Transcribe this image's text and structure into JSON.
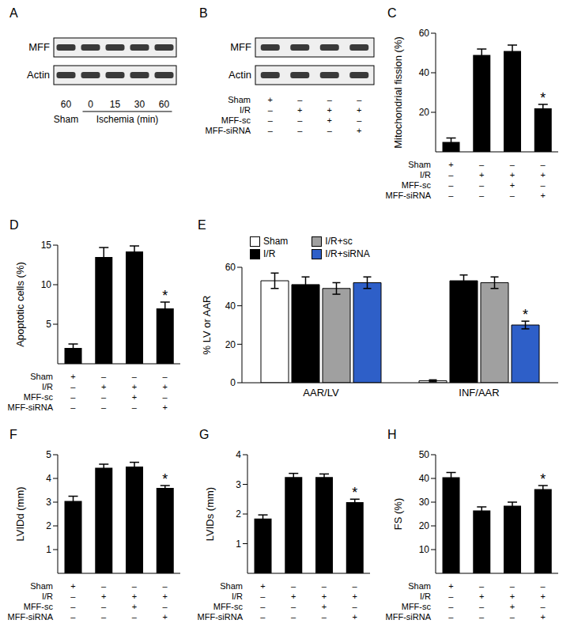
{
  "chart_data": [
    {
      "panel": "C",
      "type": "bar",
      "ylabel": "Mitochondrial fission (%)",
      "categories": [
        null,
        null,
        null,
        null
      ],
      "values": [
        5,
        49,
        51,
        22
      ],
      "errors": [
        2,
        3,
        3,
        2
      ],
      "color": "#000000",
      "ylim": [
        0,
        60
      ],
      "yticks": [
        0,
        20,
        40,
        60
      ],
      "annotations": [
        {
          "index": 3,
          "text": "*"
        }
      ],
      "conditions": [
        {
          "name": "Sham",
          "marks": [
            "+",
            "–",
            "–",
            "–"
          ]
        },
        {
          "name": "I/R",
          "marks": [
            "–",
            "+",
            "+",
            "+"
          ]
        },
        {
          "name": "MFF-sc",
          "marks": [
            "–",
            "–",
            "+",
            "–"
          ]
        },
        {
          "name": "MFF-siRNA",
          "marks": [
            "–",
            "–",
            "–",
            "+"
          ]
        }
      ]
    },
    {
      "panel": "D",
      "type": "bar",
      "ylabel": "Apoptotic cells (%)",
      "categories": [
        null,
        null,
        null,
        null
      ],
      "values": [
        2,
        13.5,
        14.2,
        7
      ],
      "errors": [
        0.5,
        1.2,
        0.7,
        0.8
      ],
      "color": "#000000",
      "ylim": [
        0,
        15
      ],
      "yticks": [
        0,
        5,
        10,
        15
      ],
      "annotations": [
        {
          "index": 3,
          "text": "*"
        }
      ],
      "conditions": [
        {
          "name": "Sham",
          "marks": [
            "+",
            "–",
            "–",
            "–"
          ]
        },
        {
          "name": "I/R",
          "marks": [
            "–",
            "+",
            "+",
            "+"
          ]
        },
        {
          "name": "MFF-sc",
          "marks": [
            "–",
            "–",
            "+",
            "–"
          ]
        },
        {
          "name": "MFF-siRNA",
          "marks": [
            "–",
            "–",
            "–",
            "+"
          ]
        }
      ]
    },
    {
      "panel": "E",
      "type": "bar",
      "ylabel": "% LV or AAR",
      "categories": [
        "AAR/LV",
        "INF/AAR"
      ],
      "ylim": [
        0,
        60
      ],
      "yticks": [
        0,
        20,
        40,
        60
      ],
      "legend": "top",
      "series": [
        {
          "name": "Sham",
          "color": "#ffffff",
          "values": [
            53,
            1
          ],
          "errors": [
            4,
            0.5
          ]
        },
        {
          "name": "I/R",
          "color": "#000000",
          "values": [
            51,
            53
          ],
          "errors": [
            4,
            3
          ]
        },
        {
          "name": "I/R+sc",
          "color": "#a0a0a0",
          "values": [
            49,
            52
          ],
          "errors": [
            3,
            3
          ]
        },
        {
          "name": "I/R+siRNA",
          "color": "#2e5fc8",
          "values": [
            52,
            30
          ],
          "errors": [
            3,
            2
          ]
        }
      ],
      "annotations": [
        {
          "series": "I/R+siRNA",
          "index": 1,
          "text": "*"
        }
      ]
    },
    {
      "panel": "F",
      "type": "bar",
      "ylabel": "LVIDd (mm)",
      "categories": [
        null,
        null,
        null,
        null
      ],
      "values": [
        3.05,
        4.45,
        4.5,
        3.6
      ],
      "errors": [
        0.2,
        0.15,
        0.18,
        0.1
      ],
      "color": "#000000",
      "ylim": [
        0,
        5
      ],
      "yticks": [
        0,
        1,
        2,
        3,
        4,
        5
      ],
      "annotations": [
        {
          "index": 3,
          "text": "*"
        }
      ],
      "conditions": [
        {
          "name": "Sham",
          "marks": [
            "+",
            "–",
            "–",
            "–"
          ]
        },
        {
          "name": "I/R",
          "marks": [
            "–",
            "+",
            "+",
            "+"
          ]
        },
        {
          "name": "MFF-sc",
          "marks": [
            "–",
            "–",
            "+",
            "–"
          ]
        },
        {
          "name": "MFF-siRNA",
          "marks": [
            "–",
            "–",
            "–",
            "+"
          ]
        }
      ]
    },
    {
      "panel": "G",
      "type": "bar",
      "ylabel": "LVIDs (mm)",
      "categories": [
        null,
        null,
        null,
        null
      ],
      "values": [
        1.85,
        3.25,
        3.25,
        2.4
      ],
      "errors": [
        0.12,
        0.12,
        0.1,
        0.1
      ],
      "color": "#000000",
      "ylim": [
        0,
        4
      ],
      "yticks": [
        0,
        1,
        2,
        3,
        4
      ],
      "annotations": [
        {
          "index": 3,
          "text": "*"
        }
      ],
      "conditions": [
        {
          "name": "Sham",
          "marks": [
            "+",
            "–",
            "–",
            "–"
          ]
        },
        {
          "name": "I/R",
          "marks": [
            "–",
            "+",
            "+",
            "+"
          ]
        },
        {
          "name": "MFF-sc",
          "marks": [
            "–",
            "–",
            "+",
            "–"
          ]
        },
        {
          "name": "MFF-siRNA",
          "marks": [
            "–",
            "–",
            "–",
            "+"
          ]
        }
      ]
    },
    {
      "panel": "H",
      "type": "bar",
      "ylabel": "FS (%)",
      "categories": [
        null,
        null,
        null,
        null
      ],
      "values": [
        40.5,
        26.5,
        28.5,
        35.5
      ],
      "errors": [
        2,
        1.5,
        1.5,
        1.5
      ],
      "color": "#000000",
      "ylim": [
        0,
        50
      ],
      "yticks": [
        0,
        10,
        20,
        30,
        40,
        50
      ],
      "annotations": [
        {
          "index": 3,
          "text": "*"
        }
      ],
      "conditions": [
        {
          "name": "Sham",
          "marks": [
            "+",
            "–",
            "–",
            "–"
          ]
        },
        {
          "name": "I/R",
          "marks": [
            "–",
            "+",
            "+",
            "+"
          ]
        },
        {
          "name": "MFF-sc",
          "marks": [
            "–",
            "–",
            "+",
            "–"
          ]
        },
        {
          "name": "MFF-siRNA",
          "marks": [
            "–",
            "–",
            "–",
            "+"
          ]
        }
      ]
    }
  ],
  "blots": [
    {
      "panel": "A",
      "bands": [
        "MFF",
        "Actin"
      ],
      "lanes": [
        60,
        0,
        15,
        30,
        60
      ],
      "groups": [
        {
          "text": "Sham",
          "from": 0,
          "to": 0
        },
        {
          "text": "Ischemia (min)",
          "from": 1,
          "to": 4
        }
      ]
    },
    {
      "panel": "B",
      "bands": [
        "MFF",
        "Actin"
      ],
      "conditions": [
        {
          "name": "Sham",
          "marks": [
            "+",
            "–",
            "–",
            "–"
          ]
        },
        {
          "name": "I/R",
          "marks": [
            "–",
            "+",
            "+",
            "+"
          ]
        },
        {
          "name": "MFF-sc",
          "marks": [
            "–",
            "–",
            "+",
            "–"
          ]
        },
        {
          "name": "MFF-siRNA",
          "marks": [
            "–",
            "–",
            "–",
            "+"
          ]
        }
      ]
    }
  ]
}
